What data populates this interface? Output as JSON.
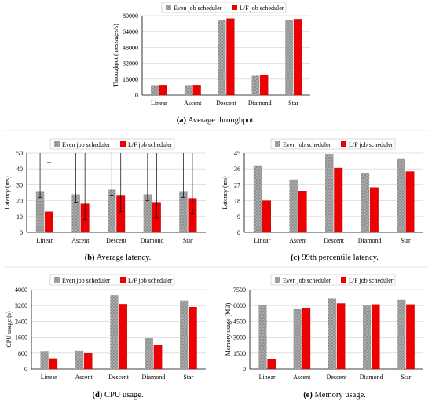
{
  "chart_data": [
    {
      "type": "bar",
      "title": "",
      "caption": {
        "letter": "(a)",
        "text": " Average throughput."
      },
      "ylabel": "Throughput (messages/s)",
      "xlabel": "",
      "categories": [
        "Linear",
        "Ascent",
        "Descent",
        "Diamond",
        "Star"
      ],
      "ylim": [
        0,
        80000
      ],
      "yticks": [
        0,
        16000,
        32000,
        48000,
        64000,
        80000
      ],
      "legend_position": "top-center",
      "series": [
        {
          "name": "Even job scheduler",
          "values": [
            10000,
            10000,
            76000,
            19500,
            76000
          ]
        },
        {
          "name": "L/F job scheduler",
          "values": [
            10000,
            10000,
            77000,
            20000,
            76500
          ]
        }
      ]
    },
    {
      "type": "bar",
      "title": "",
      "caption": {
        "letter": "(b)",
        "text": " Average latency."
      },
      "ylabel": "Latency (ms)",
      "xlabel": "",
      "categories": [
        "Linear",
        "Ascent",
        "Descent",
        "Diamond",
        "Star"
      ],
      "ylim": [
        0,
        50
      ],
      "yticks": [
        0,
        10,
        20,
        30,
        40,
        50
      ],
      "legend_position": "top-center",
      "series": [
        {
          "name": "Even job scheduler",
          "values": [
            26,
            24,
            27,
            24,
            26
          ],
          "error_low": [
            4,
            5,
            4,
            4,
            4
          ],
          "error_high": [
            24,
            26,
            23,
            26,
            24
          ]
        },
        {
          "name": "L/F job scheduler",
          "values": [
            13,
            18,
            23,
            19,
            21.5
          ],
          "error_low": [
            13,
            10,
            10,
            10,
            10
          ],
          "error_high": [
            31,
            32,
            27,
            31,
            28.5
          ]
        }
      ]
    },
    {
      "type": "bar",
      "title": "",
      "caption": {
        "letter": "(c)",
        "text": " 99th percentile latency."
      },
      "ylabel": "Latency (ms)",
      "xlabel": "",
      "categories": [
        "Linear",
        "Ascent",
        "Descent",
        "Diamond",
        "Star"
      ],
      "ylim": [
        0,
        45
      ],
      "yticks": [
        0,
        9,
        18,
        27,
        36,
        45
      ],
      "legend_position": "top-center",
      "series": [
        {
          "name": "Even job scheduler",
          "values": [
            38,
            30,
            44.5,
            33.5,
            42
          ]
        },
        {
          "name": "L/F job scheduler",
          "values": [
            18,
            23.5,
            36.5,
            25.5,
            34.5
          ]
        }
      ]
    },
    {
      "type": "bar",
      "title": "",
      "caption": {
        "letter": "(d)",
        "text": " CPU usage."
      },
      "ylabel": "CPU usage (s)",
      "xlabel": "",
      "categories": [
        "Linear",
        "Ascent",
        "Descent",
        "Diamond",
        "Star"
      ],
      "ylim": [
        0,
        4000
      ],
      "yticks": [
        0,
        800,
        1600,
        2400,
        3200,
        4000
      ],
      "legend_position": "top-center",
      "series": [
        {
          "name": "Even job scheduler",
          "values": [
            900,
            920,
            3720,
            1550,
            3460
          ]
        },
        {
          "name": "L/F job scheduler",
          "values": [
            520,
            780,
            3270,
            1180,
            3120
          ]
        }
      ]
    },
    {
      "type": "bar",
      "title": "",
      "caption": {
        "letter": "(e)",
        "text": " Memory usage."
      },
      "ylabel": "Memory usage (MB)",
      "xlabel": "",
      "categories": [
        "Linear",
        "Ascent",
        "Descent",
        "Diamond",
        "Star"
      ],
      "ylim": [
        0,
        7500
      ],
      "yticks": [
        0,
        1500,
        3000,
        4500,
        6000,
        7500
      ],
      "legend_position": "top-center",
      "series": [
        {
          "name": "Even job scheduler",
          "values": [
            6050,
            5650,
            6650,
            6000,
            6550
          ]
        },
        {
          "name": "L/F job scheduler",
          "values": [
            900,
            5700,
            6200,
            6100,
            6100
          ]
        }
      ]
    }
  ],
  "colors": {
    "even": "#8f8f8f",
    "even_dot": "#d2d2d2",
    "lf": "#ee0000",
    "grid": "#d9d9d9",
    "axis": "#000000"
  }
}
